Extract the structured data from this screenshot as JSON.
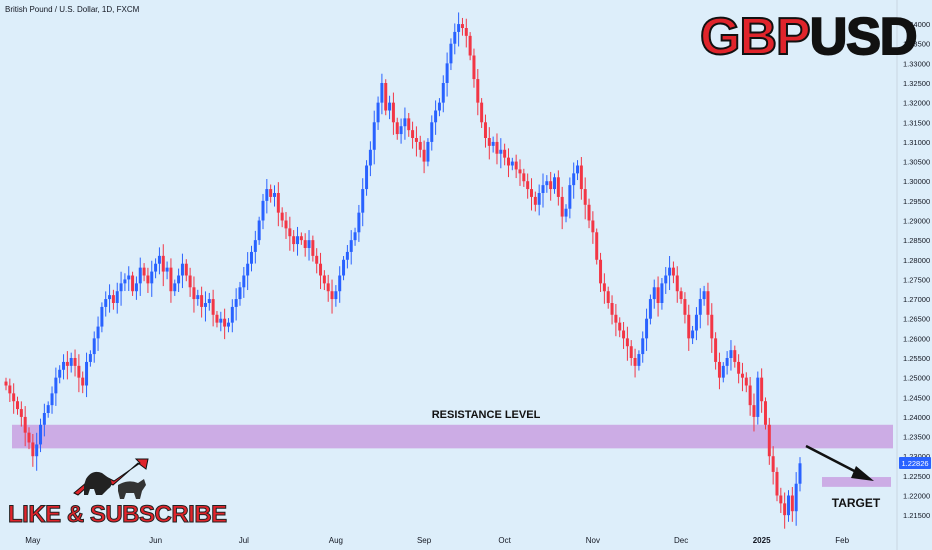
{
  "header": {
    "symbol_title": "British Pound / U.S. Dollar, 1D, FXCM",
    "brand_part1": "GBP",
    "brand_part2": "USD"
  },
  "promo": {
    "text": "LIKE & SUBSCRIBE",
    "logo_icon": "bull-bear-logo-icon"
  },
  "colors": {
    "background": "#ddeefa",
    "up": "#2962ff",
    "down": "#f23645",
    "zone": "#c9a0e0",
    "last_price_tag": "#2962ff",
    "brand_red": "#e0242b"
  },
  "chart_data": {
    "type": "candlestick",
    "title": "British Pound / U.S. Dollar, 1D, FXCM",
    "ylim": [
      1.213,
      1.3418
    ],
    "y_ticks": [
      "1.34000",
      "1.33500",
      "1.33000",
      "1.32500",
      "1.32000",
      "1.31500",
      "1.31000",
      "1.30500",
      "1.30000",
      "1.29500",
      "1.29000",
      "1.28500",
      "1.28000",
      "1.27500",
      "1.27000",
      "1.26500",
      "1.26000",
      "1.25500",
      "1.25000",
      "1.24500",
      "1.24000",
      "1.23500",
      "1.23000",
      "1.22500",
      "1.22000",
      "1.21500"
    ],
    "x_labels": [
      {
        "label": "May",
        "bold": false
      },
      {
        "label": "Jun",
        "bold": false
      },
      {
        "label": "Jul",
        "bold": false
      },
      {
        "label": "Aug",
        "bold": false
      },
      {
        "label": "Sep",
        "bold": false
      },
      {
        "label": "Oct",
        "bold": false
      },
      {
        "label": "Nov",
        "bold": false
      },
      {
        "label": "Dec",
        "bold": false
      },
      {
        "label": "2025",
        "bold": true
      },
      {
        "label": "Feb",
        "bold": false
      }
    ],
    "last_price": "1.22826",
    "zones": [
      {
        "name": "resistance",
        "label": "RESISTANCE LEVEL",
        "top": 1.238,
        "bottom": 1.232
      },
      {
        "name": "target",
        "label": "TARGET",
        "top": 1.2247,
        "bottom": 1.2222
      }
    ],
    "closes": [
      1.248,
      1.246,
      1.244,
      1.242,
      1.24,
      1.236,
      1.2335,
      1.23,
      1.233,
      1.238,
      1.241,
      1.243,
      1.246,
      1.25,
      1.252,
      1.254,
      1.253,
      1.255,
      1.253,
      1.25,
      1.248,
      1.254,
      1.256,
      1.26,
      1.263,
      1.268,
      1.27,
      1.271,
      1.269,
      1.272,
      1.274,
      1.275,
      1.276,
      1.272,
      1.274,
      1.278,
      1.276,
      1.274,
      1.277,
      1.279,
      1.281,
      1.277,
      1.278,
      1.272,
      1.274,
      1.276,
      1.279,
      1.276,
      1.273,
      1.27,
      1.271,
      1.268,
      1.269,
      1.27,
      1.266,
      1.264,
      1.265,
      1.263,
      1.264,
      1.268,
      1.27,
      1.273,
      1.276,
      1.279,
      1.282,
      1.285,
      1.29,
      1.295,
      1.298,
      1.296,
      1.297,
      1.292,
      1.29,
      1.288,
      1.286,
      1.284,
      1.286,
      1.285,
      1.283,
      1.285,
      1.281,
      1.279,
      1.276,
      1.274,
      1.272,
      1.27,
      1.272,
      1.276,
      1.28,
      1.282,
      1.285,
      1.287,
      1.292,
      1.298,
      1.304,
      1.308,
      1.315,
      1.32,
      1.325,
      1.318,
      1.32,
      1.315,
      1.312,
      1.314,
      1.316,
      1.313,
      1.311,
      1.31,
      1.308,
      1.305,
      1.31,
      1.315,
      1.318,
      1.32,
      1.325,
      1.33,
      1.335,
      1.338,
      1.34,
      1.339,
      1.337,
      1.332,
      1.326,
      1.32,
      1.315,
      1.311,
      1.309,
      1.31,
      1.307,
      1.308,
      1.306,
      1.304,
      1.305,
      1.303,
      1.302,
      1.3,
      1.298,
      1.296,
      1.294,
      1.297,
      1.299,
      1.3,
      1.298,
      1.301,
      1.296,
      1.291,
      1.293,
      1.299,
      1.302,
      1.304,
      1.298,
      1.294,
      1.29,
      1.287,
      1.28,
      1.274,
      1.272,
      1.269,
      1.266,
      1.264,
      1.262,
      1.26,
      1.258,
      1.255,
      1.253,
      1.256,
      1.26,
      1.265,
      1.27,
      1.273,
      1.269,
      1.274,
      1.276,
      1.278,
      1.276,
      1.272,
      1.27,
      1.266,
      1.26,
      1.262,
      1.266,
      1.27,
      1.272,
      1.266,
      1.26,
      1.254,
      1.25,
      1.253,
      1.255,
      1.257,
      1.254,
      1.251,
      1.25,
      1.248,
      1.243,
      1.24,
      1.25,
      1.244,
      1.238,
      1.23,
      1.226,
      1.22,
      1.218,
      1.215,
      1.22,
      1.216,
      1.223,
      1.2282
    ]
  }
}
